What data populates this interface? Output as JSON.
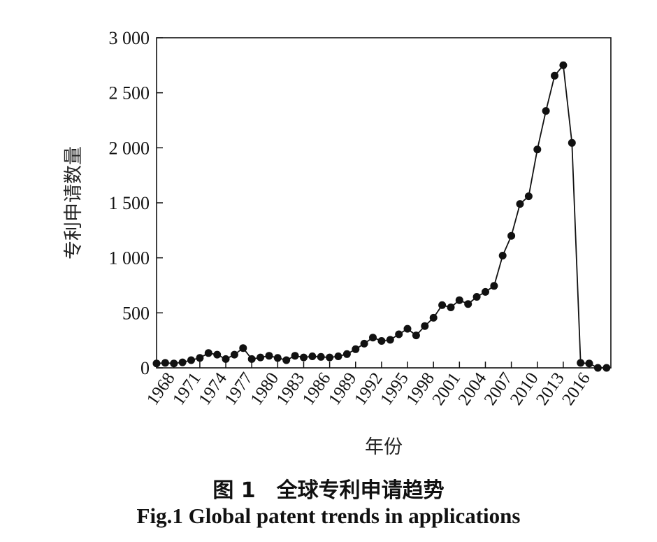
{
  "chart_data": {
    "type": "line",
    "xlabel": "年份",
    "ylabel": "专利申请数量",
    "xlim": [
      1966,
      2018.5
    ],
    "ylim": [
      0,
      3000
    ],
    "y_ticks": [
      0,
      500,
      1000,
      1500,
      2000,
      2500,
      3000
    ],
    "y_tick_labels": [
      "0",
      "500",
      "1 000",
      "1 500",
      "2 000",
      "2 500",
      "3 000"
    ],
    "x_ticks": [
      1968,
      1971,
      1974,
      1977,
      1980,
      1983,
      1986,
      1989,
      1992,
      1995,
      1998,
      2001,
      2004,
      2007,
      2010,
      2013,
      2016
    ],
    "x_tick_labels": [
      "1968",
      "1971",
      "1974",
      "1977",
      "1980",
      "1983",
      "1986",
      "1989",
      "1992",
      "1995",
      "1998",
      "2001",
      "2004",
      "2007",
      "2010",
      "2013",
      "2016"
    ],
    "grid": false,
    "marker": "filled-circle",
    "series": [
      {
        "x": [
          1966,
          1967,
          1968,
          1969,
          1970,
          1971,
          1972,
          1973,
          1974,
          1975,
          1976,
          1977,
          1978,
          1979,
          1980,
          1981,
          1982,
          1983,
          1984,
          1985,
          1986,
          1987,
          1988,
          1989,
          1990,
          1991,
          1992,
          1993,
          1994,
          1995,
          1996,
          1997,
          1998,
          1999,
          2000,
          2001,
          2002,
          2003,
          2004,
          2005,
          2006,
          2007,
          2008,
          2009,
          2010,
          2011,
          2012,
          2013,
          2014,
          2015,
          2016,
          2017,
          2018
        ],
        "values": [
          40,
          45,
          40,
          50,
          70,
          90,
          135,
          120,
          80,
          120,
          180,
          80,
          95,
          110,
          90,
          70,
          110,
          95,
          105,
          100,
          95,
          105,
          125,
          170,
          220,
          275,
          245,
          255,
          305,
          355,
          295,
          380,
          455,
          570,
          550,
          615,
          580,
          645,
          690,
          745,
          1020,
          1200,
          1490,
          1560,
          1985,
          2335,
          2655,
          2750,
          2045,
          45,
          40,
          0,
          0
        ]
      }
    ]
  },
  "caption": {
    "cn": "图 1　全球专利申请趋势",
    "en": "Fig.1 Global patent trends in applications"
  }
}
